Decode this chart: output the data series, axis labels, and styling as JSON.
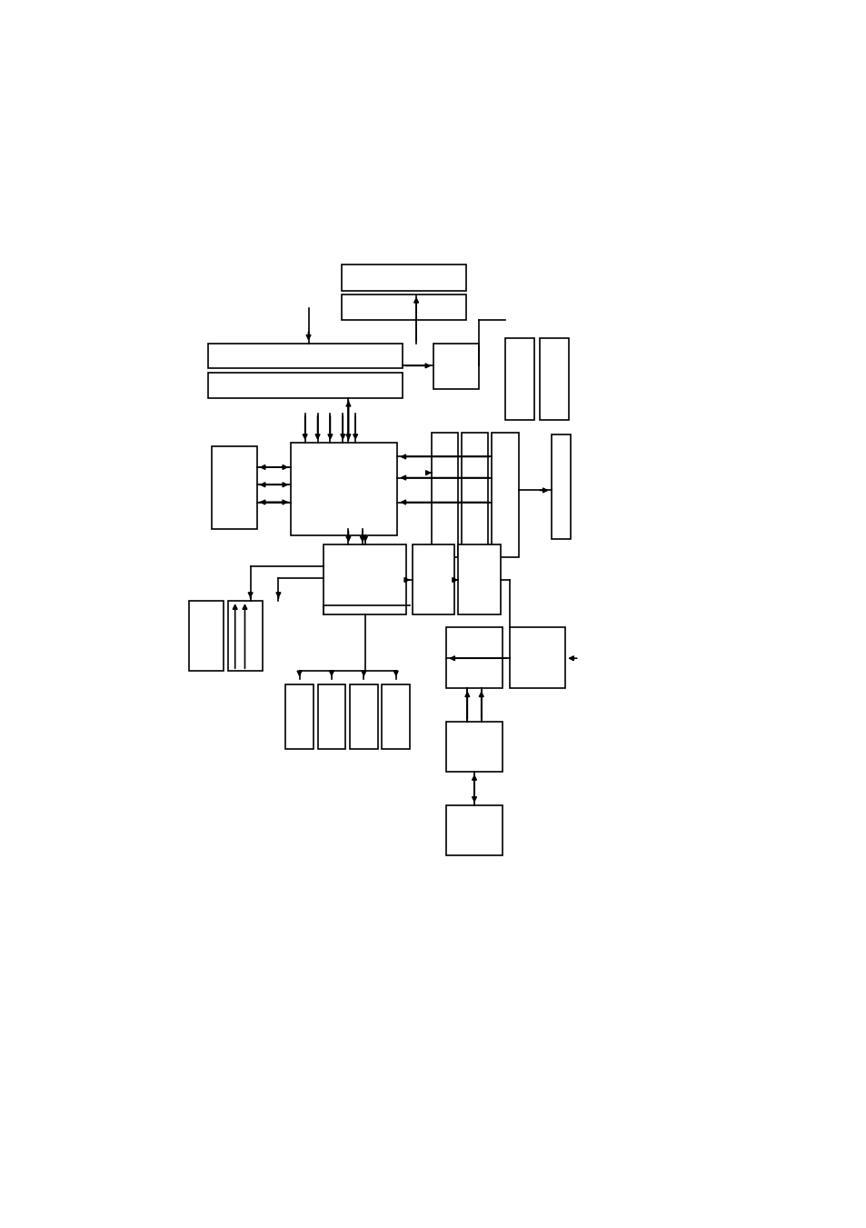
{
  "bg": "#ffffff",
  "figw": 9.54,
  "figh": 13.51,
  "dpi": 100,
  "lw": 1.2
}
